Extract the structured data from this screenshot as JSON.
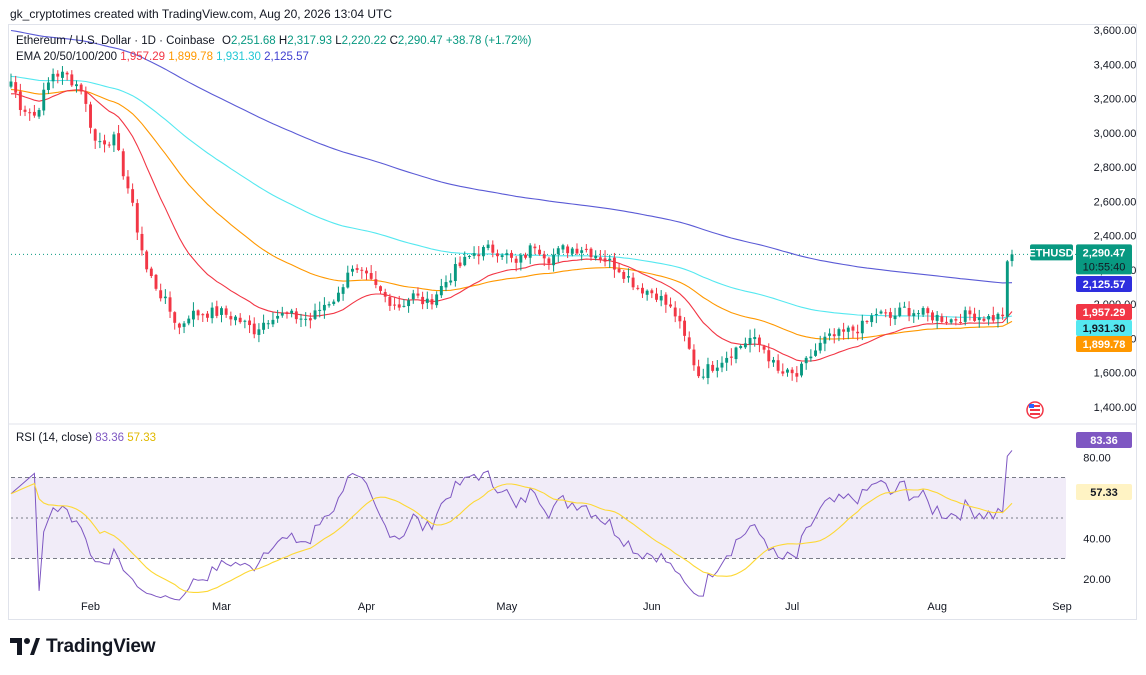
{
  "attribution": "gk_cryptotimes created with TradingView.com, Aug 20, 2026 13:04 UTC",
  "legend": {
    "symbol": "Ethereum / U.S. Dollar · 1D · Coinbase",
    "o_label": "O",
    "o": "2,251.68",
    "h_label": "H",
    "h": "2,317.93",
    "l_label": "L",
    "l": "2,220.22",
    "c_label": "C",
    "c": "2,290.47",
    "change": "+38.78 (+1.72%)",
    "ema_label": "EMA 20/50/100/200",
    "ema20": "1,957.29",
    "ema50": "1,899.78",
    "ema100": "1,931.30",
    "ema200": "2,125.57"
  },
  "rsi_legend": {
    "label": "RSI (14, close)",
    "rsi": "83.36",
    "ma": "57.33"
  },
  "brand": {
    "name": "TradingView"
  },
  "colors": {
    "up": "#089981",
    "down": "#f23645",
    "ema20": "#f23645",
    "ema50": "#ff9800",
    "ema100": "#55e8f0",
    "ema200": "#5b5bd6",
    "rsi": "#7e57c2",
    "rsi_ma": "#fdd835",
    "rsi_band": "#ede7f6"
  },
  "chart_data": [
    {
      "type": "candlestick",
      "title": "Ethereum / U.S. Dollar · 1D · Coinbase",
      "x_tick_labels": [
        "Feb",
        "Mar",
        "Apr",
        "May",
        "Jun",
        "Jul",
        "Aug",
        "Sep"
      ],
      "y_tick_labels": [
        "3,600.00",
        "3,400.00",
        "3,200.00",
        "3,000.00",
        "2,800.00",
        "2,600.00",
        "2,400.00",
        "2,200.00",
        "2,000.00",
        "1,800.00",
        "1,600.00",
        "1,400.00"
      ],
      "ylim": [
        1400,
        3600
      ],
      "price_tags": [
        {
          "name": "ETHUSD",
          "value": "2,290.47",
          "countdown": "10:55:40"
        },
        {
          "value": "2,125.57"
        },
        {
          "value": "1,957.29"
        },
        {
          "value": "1,931.30"
        },
        {
          "value": "1,899.78"
        }
      ],
      "anchors": [
        {
          "i": 0,
          "p": 3300
        },
        {
          "i": 2,
          "p": 3160
        },
        {
          "i": 5,
          "p": 3100
        },
        {
          "i": 9,
          "p": 3350
        },
        {
          "i": 12,
          "p": 3330
        },
        {
          "i": 15,
          "p": 3260
        },
        {
          "i": 18,
          "p": 2950
        },
        {
          "i": 22,
          "p": 2960
        },
        {
          "i": 25,
          "p": 2680
        },
        {
          "i": 29,
          "p": 2200
        },
        {
          "i": 33,
          "p": 2010
        },
        {
          "i": 36,
          "p": 1860
        },
        {
          "i": 38,
          "p": 1940
        },
        {
          "i": 42,
          "p": 1950
        },
        {
          "i": 45,
          "p": 1950
        },
        {
          "i": 48,
          "p": 1920
        },
        {
          "i": 52,
          "p": 1850
        },
        {
          "i": 56,
          "p": 1940
        },
        {
          "i": 60,
          "p": 1930
        },
        {
          "i": 64,
          "p": 1910
        },
        {
          "i": 67,
          "p": 2000
        },
        {
          "i": 70,
          "p": 2050
        },
        {
          "i": 72,
          "p": 2200
        },
        {
          "i": 76,
          "p": 2150
        },
        {
          "i": 80,
          "p": 2040
        },
        {
          "i": 83,
          "p": 1990
        },
        {
          "i": 86,
          "p": 2050
        },
        {
          "i": 89,
          "p": 2000
        },
        {
          "i": 92,
          "p": 2100
        },
        {
          "i": 95,
          "p": 2200
        },
        {
          "i": 99,
          "p": 2300
        },
        {
          "i": 102,
          "p": 2320
        },
        {
          "i": 105,
          "p": 2310
        },
        {
          "i": 108,
          "p": 2230
        },
        {
          "i": 112,
          "p": 2350
        },
        {
          "i": 115,
          "p": 2270
        },
        {
          "i": 118,
          "p": 2320
        },
        {
          "i": 122,
          "p": 2330
        },
        {
          "i": 126,
          "p": 2280
        },
        {
          "i": 130,
          "p": 2210
        },
        {
          "i": 134,
          "p": 2100
        },
        {
          "i": 138,
          "p": 2060
        },
        {
          "i": 142,
          "p": 1940
        },
        {
          "i": 144,
          "p": 1800
        },
        {
          "i": 147,
          "p": 1590
        },
        {
          "i": 150,
          "p": 1640
        },
        {
          "i": 154,
          "p": 1720
        },
        {
          "i": 158,
          "p": 1800
        },
        {
          "i": 161,
          "p": 1740
        },
        {
          "i": 164,
          "p": 1600
        },
        {
          "i": 168,
          "p": 1580
        },
        {
          "i": 171,
          "p": 1700
        },
        {
          "i": 174,
          "p": 1790
        },
        {
          "i": 178,
          "p": 1830
        },
        {
          "i": 182,
          "p": 1870
        },
        {
          "i": 185,
          "p": 1950
        },
        {
          "i": 188,
          "p": 1920
        },
        {
          "i": 191,
          "p": 1970
        },
        {
          "i": 194,
          "p": 1950
        },
        {
          "i": 197,
          "p": 1930
        },
        {
          "i": 201,
          "p": 1910
        },
        {
          "i": 205,
          "p": 1940
        },
        {
          "i": 209,
          "p": 1920
        },
        {
          "i": 212,
          "p": 1930
        },
        {
          "i": 213,
          "p": 2250
        },
        {
          "i": 214,
          "p": 2290
        }
      ],
      "ema_endpoints": {
        "ema20": 1957.29,
        "ema50": 1899.78,
        "ema100": 1931.3,
        "ema200": 2125.57
      }
    },
    {
      "type": "line",
      "title": "RSI (14, close)",
      "y_tick_labels": [
        "80.00",
        "40.00",
        "20.00"
      ],
      "ylim": [
        10,
        90
      ],
      "bands": [
        30,
        50,
        70
      ],
      "rsi_tags": [
        {
          "value": "83.36"
        },
        {
          "value": "57.33"
        }
      ]
    }
  ]
}
